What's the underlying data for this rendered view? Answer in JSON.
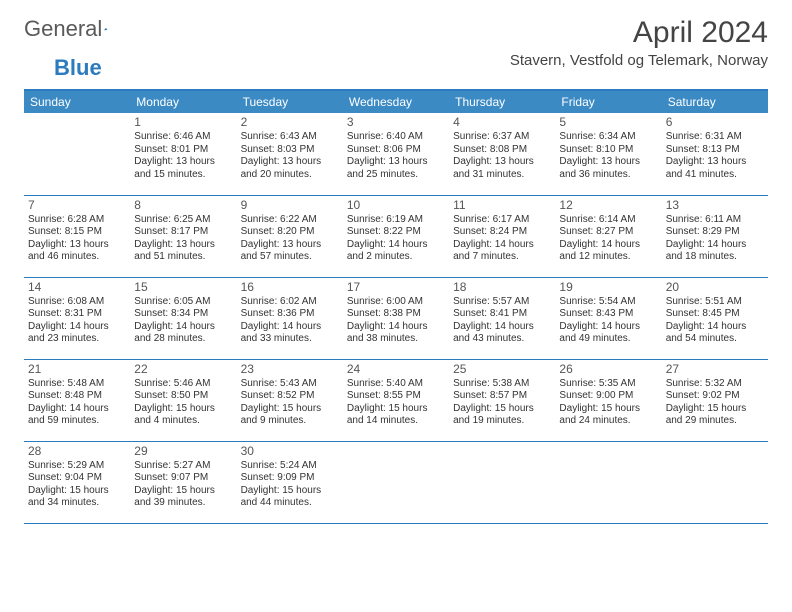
{
  "logo": {
    "text1": "General",
    "text2": "Blue"
  },
  "title": "April 2024",
  "location": "Stavern, Vestfold og Telemark, Norway",
  "colors": {
    "header_bg": "#3b8ac4",
    "header_text": "#ffffff",
    "rule": "#2b7bbf",
    "text": "#333333",
    "daynum": "#555555",
    "logo_gray": "#5a5a5a",
    "logo_blue": "#2b7bbf",
    "background": "#ffffff"
  },
  "typography": {
    "title_size_pt": 22,
    "location_size_pt": 11,
    "header_size_pt": 9,
    "cell_size_pt": 7.5,
    "daynum_size_pt": 9
  },
  "columns": [
    "Sunday",
    "Monday",
    "Tuesday",
    "Wednesday",
    "Thursday",
    "Friday",
    "Saturday"
  ],
  "weeks": [
    [
      null,
      {
        "day": "1",
        "sunrise": "Sunrise: 6:46 AM",
        "sunset": "Sunset: 8:01 PM",
        "d1": "Daylight: 13 hours",
        "d2": "and 15 minutes."
      },
      {
        "day": "2",
        "sunrise": "Sunrise: 6:43 AM",
        "sunset": "Sunset: 8:03 PM",
        "d1": "Daylight: 13 hours",
        "d2": "and 20 minutes."
      },
      {
        "day": "3",
        "sunrise": "Sunrise: 6:40 AM",
        "sunset": "Sunset: 8:06 PM",
        "d1": "Daylight: 13 hours",
        "d2": "and 25 minutes."
      },
      {
        "day": "4",
        "sunrise": "Sunrise: 6:37 AM",
        "sunset": "Sunset: 8:08 PM",
        "d1": "Daylight: 13 hours",
        "d2": "and 31 minutes."
      },
      {
        "day": "5",
        "sunrise": "Sunrise: 6:34 AM",
        "sunset": "Sunset: 8:10 PM",
        "d1": "Daylight: 13 hours",
        "d2": "and 36 minutes."
      },
      {
        "day": "6",
        "sunrise": "Sunrise: 6:31 AM",
        "sunset": "Sunset: 8:13 PM",
        "d1": "Daylight: 13 hours",
        "d2": "and 41 minutes."
      }
    ],
    [
      {
        "day": "7",
        "sunrise": "Sunrise: 6:28 AM",
        "sunset": "Sunset: 8:15 PM",
        "d1": "Daylight: 13 hours",
        "d2": "and 46 minutes."
      },
      {
        "day": "8",
        "sunrise": "Sunrise: 6:25 AM",
        "sunset": "Sunset: 8:17 PM",
        "d1": "Daylight: 13 hours",
        "d2": "and 51 minutes."
      },
      {
        "day": "9",
        "sunrise": "Sunrise: 6:22 AM",
        "sunset": "Sunset: 8:20 PM",
        "d1": "Daylight: 13 hours",
        "d2": "and 57 minutes."
      },
      {
        "day": "10",
        "sunrise": "Sunrise: 6:19 AM",
        "sunset": "Sunset: 8:22 PM",
        "d1": "Daylight: 14 hours",
        "d2": "and 2 minutes."
      },
      {
        "day": "11",
        "sunrise": "Sunrise: 6:17 AM",
        "sunset": "Sunset: 8:24 PM",
        "d1": "Daylight: 14 hours",
        "d2": "and 7 minutes."
      },
      {
        "day": "12",
        "sunrise": "Sunrise: 6:14 AM",
        "sunset": "Sunset: 8:27 PM",
        "d1": "Daylight: 14 hours",
        "d2": "and 12 minutes."
      },
      {
        "day": "13",
        "sunrise": "Sunrise: 6:11 AM",
        "sunset": "Sunset: 8:29 PM",
        "d1": "Daylight: 14 hours",
        "d2": "and 18 minutes."
      }
    ],
    [
      {
        "day": "14",
        "sunrise": "Sunrise: 6:08 AM",
        "sunset": "Sunset: 8:31 PM",
        "d1": "Daylight: 14 hours",
        "d2": "and 23 minutes."
      },
      {
        "day": "15",
        "sunrise": "Sunrise: 6:05 AM",
        "sunset": "Sunset: 8:34 PM",
        "d1": "Daylight: 14 hours",
        "d2": "and 28 minutes."
      },
      {
        "day": "16",
        "sunrise": "Sunrise: 6:02 AM",
        "sunset": "Sunset: 8:36 PM",
        "d1": "Daylight: 14 hours",
        "d2": "and 33 minutes."
      },
      {
        "day": "17",
        "sunrise": "Sunrise: 6:00 AM",
        "sunset": "Sunset: 8:38 PM",
        "d1": "Daylight: 14 hours",
        "d2": "and 38 minutes."
      },
      {
        "day": "18",
        "sunrise": "Sunrise: 5:57 AM",
        "sunset": "Sunset: 8:41 PM",
        "d1": "Daylight: 14 hours",
        "d2": "and 43 minutes."
      },
      {
        "day": "19",
        "sunrise": "Sunrise: 5:54 AM",
        "sunset": "Sunset: 8:43 PM",
        "d1": "Daylight: 14 hours",
        "d2": "and 49 minutes."
      },
      {
        "day": "20",
        "sunrise": "Sunrise: 5:51 AM",
        "sunset": "Sunset: 8:45 PM",
        "d1": "Daylight: 14 hours",
        "d2": "and 54 minutes."
      }
    ],
    [
      {
        "day": "21",
        "sunrise": "Sunrise: 5:48 AM",
        "sunset": "Sunset: 8:48 PM",
        "d1": "Daylight: 14 hours",
        "d2": "and 59 minutes."
      },
      {
        "day": "22",
        "sunrise": "Sunrise: 5:46 AM",
        "sunset": "Sunset: 8:50 PM",
        "d1": "Daylight: 15 hours",
        "d2": "and 4 minutes."
      },
      {
        "day": "23",
        "sunrise": "Sunrise: 5:43 AM",
        "sunset": "Sunset: 8:52 PM",
        "d1": "Daylight: 15 hours",
        "d2": "and 9 minutes."
      },
      {
        "day": "24",
        "sunrise": "Sunrise: 5:40 AM",
        "sunset": "Sunset: 8:55 PM",
        "d1": "Daylight: 15 hours",
        "d2": "and 14 minutes."
      },
      {
        "day": "25",
        "sunrise": "Sunrise: 5:38 AM",
        "sunset": "Sunset: 8:57 PM",
        "d1": "Daylight: 15 hours",
        "d2": "and 19 minutes."
      },
      {
        "day": "26",
        "sunrise": "Sunrise: 5:35 AM",
        "sunset": "Sunset: 9:00 PM",
        "d1": "Daylight: 15 hours",
        "d2": "and 24 minutes."
      },
      {
        "day": "27",
        "sunrise": "Sunrise: 5:32 AM",
        "sunset": "Sunset: 9:02 PM",
        "d1": "Daylight: 15 hours",
        "d2": "and 29 minutes."
      }
    ],
    [
      {
        "day": "28",
        "sunrise": "Sunrise: 5:29 AM",
        "sunset": "Sunset: 9:04 PM",
        "d1": "Daylight: 15 hours",
        "d2": "and 34 minutes."
      },
      {
        "day": "29",
        "sunrise": "Sunrise: 5:27 AM",
        "sunset": "Sunset: 9:07 PM",
        "d1": "Daylight: 15 hours",
        "d2": "and 39 minutes."
      },
      {
        "day": "30",
        "sunrise": "Sunrise: 5:24 AM",
        "sunset": "Sunset: 9:09 PM",
        "d1": "Daylight: 15 hours",
        "d2": "and 44 minutes."
      },
      null,
      null,
      null,
      null
    ]
  ]
}
